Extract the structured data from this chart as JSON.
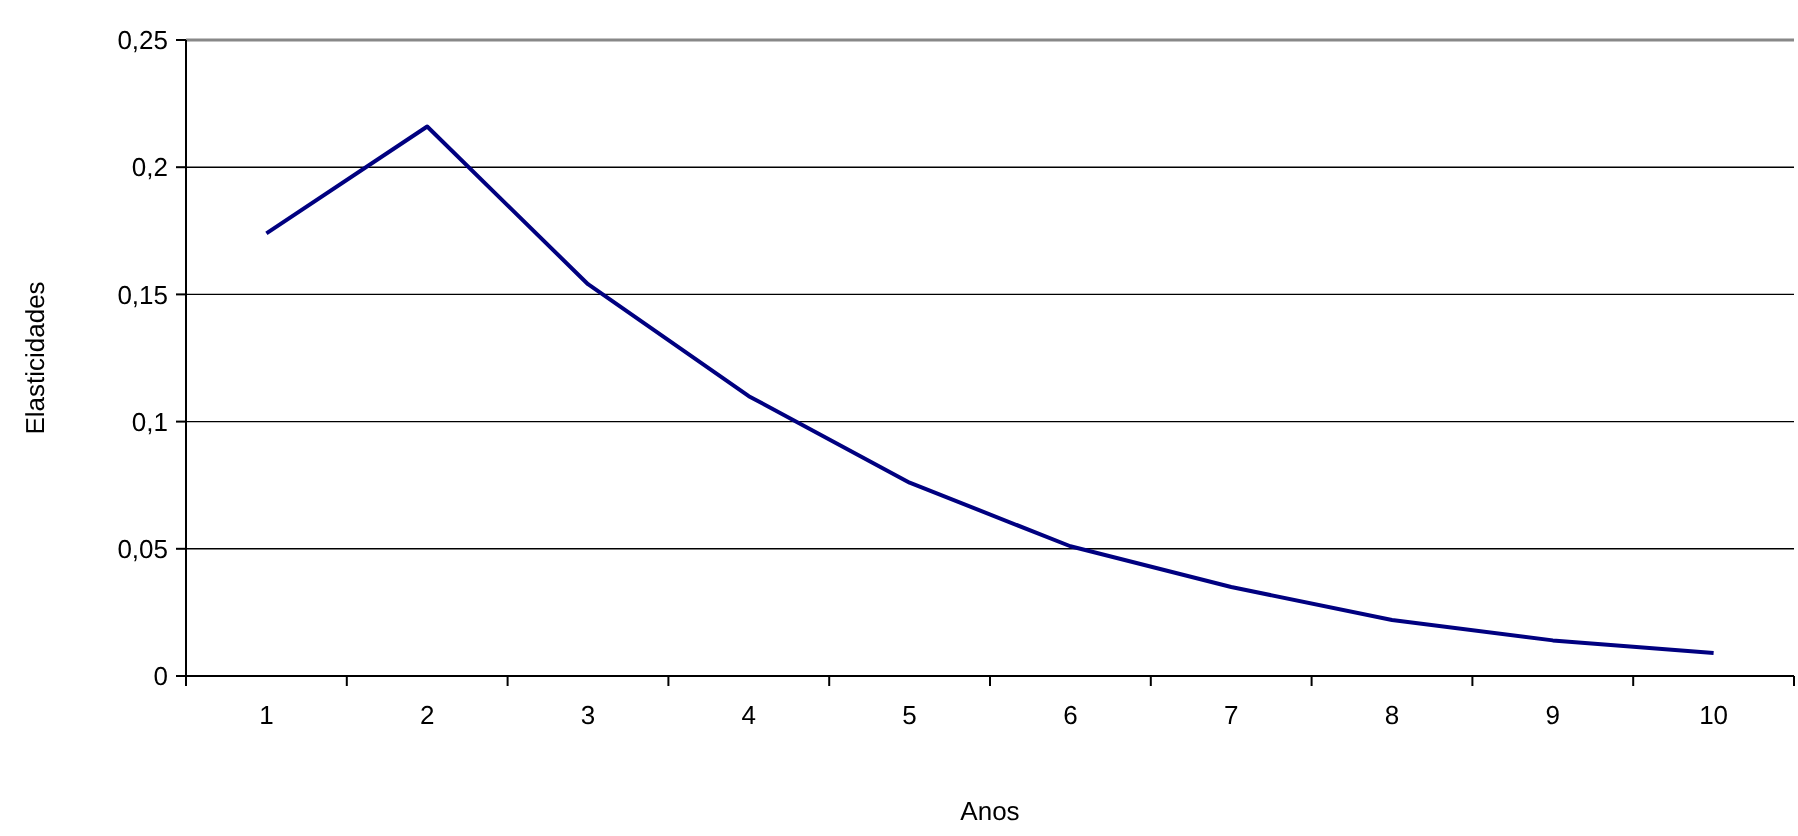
{
  "chart_data": {
    "type": "line",
    "xlabel": "Anos",
    "ylabel": "Elasticidades",
    "categories": [
      "1",
      "2",
      "3",
      "4",
      "5",
      "6",
      "7",
      "8",
      "9",
      "10"
    ],
    "series": [
      {
        "color": "#000080",
        "values": [
          0.174,
          0.216,
          0.154,
          0.11,
          0.076,
          0.051,
          0.035,
          0.022,
          0.014,
          0.009
        ]
      }
    ],
    "ylim": [
      0,
      0.25
    ],
    "yticks": [
      0,
      {
        "value": 0.05,
        "label": "0,05"
      },
      {
        "value": 0.1,
        "label": "0,1"
      },
      {
        "value": 0.15,
        "label": "0,15"
      },
      {
        "value": 0.2,
        "label": "0,2"
      },
      {
        "value": 0.25,
        "label": "0,25"
      }
    ],
    "grid": "y",
    "marker": "none",
    "line_style": "solid"
  }
}
